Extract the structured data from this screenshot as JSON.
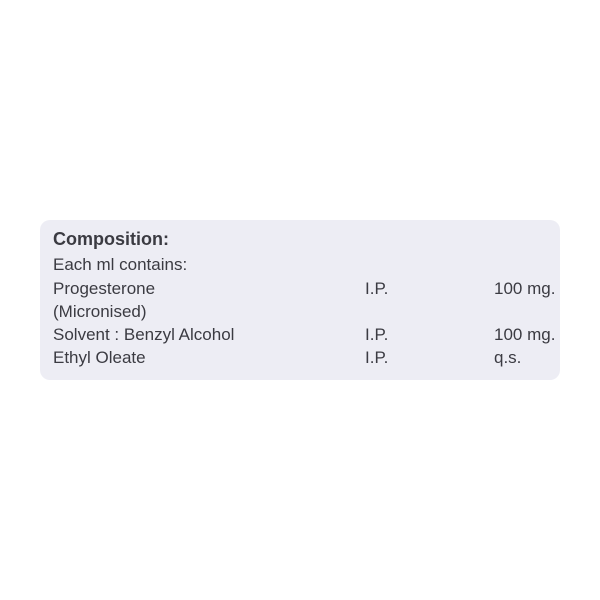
{
  "composition": {
    "title": "Composition:",
    "intro": "Each ml contains:",
    "rows": [
      {
        "name": "Progesterone",
        "standard": "I.P.",
        "amount": "100 mg."
      },
      {
        "name": "(Micronised)",
        "standard": "",
        "amount": ""
      },
      {
        "name": "Solvent : Benzyl Alcohol",
        "standard": "I.P.",
        "amount": "100 mg."
      },
      {
        "name": "Ethyl Oleate",
        "standard": "I.P.",
        "amount": "q.s."
      }
    ]
  },
  "colors": {
    "panel": "#ededf4",
    "text": "#3b3b42"
  }
}
